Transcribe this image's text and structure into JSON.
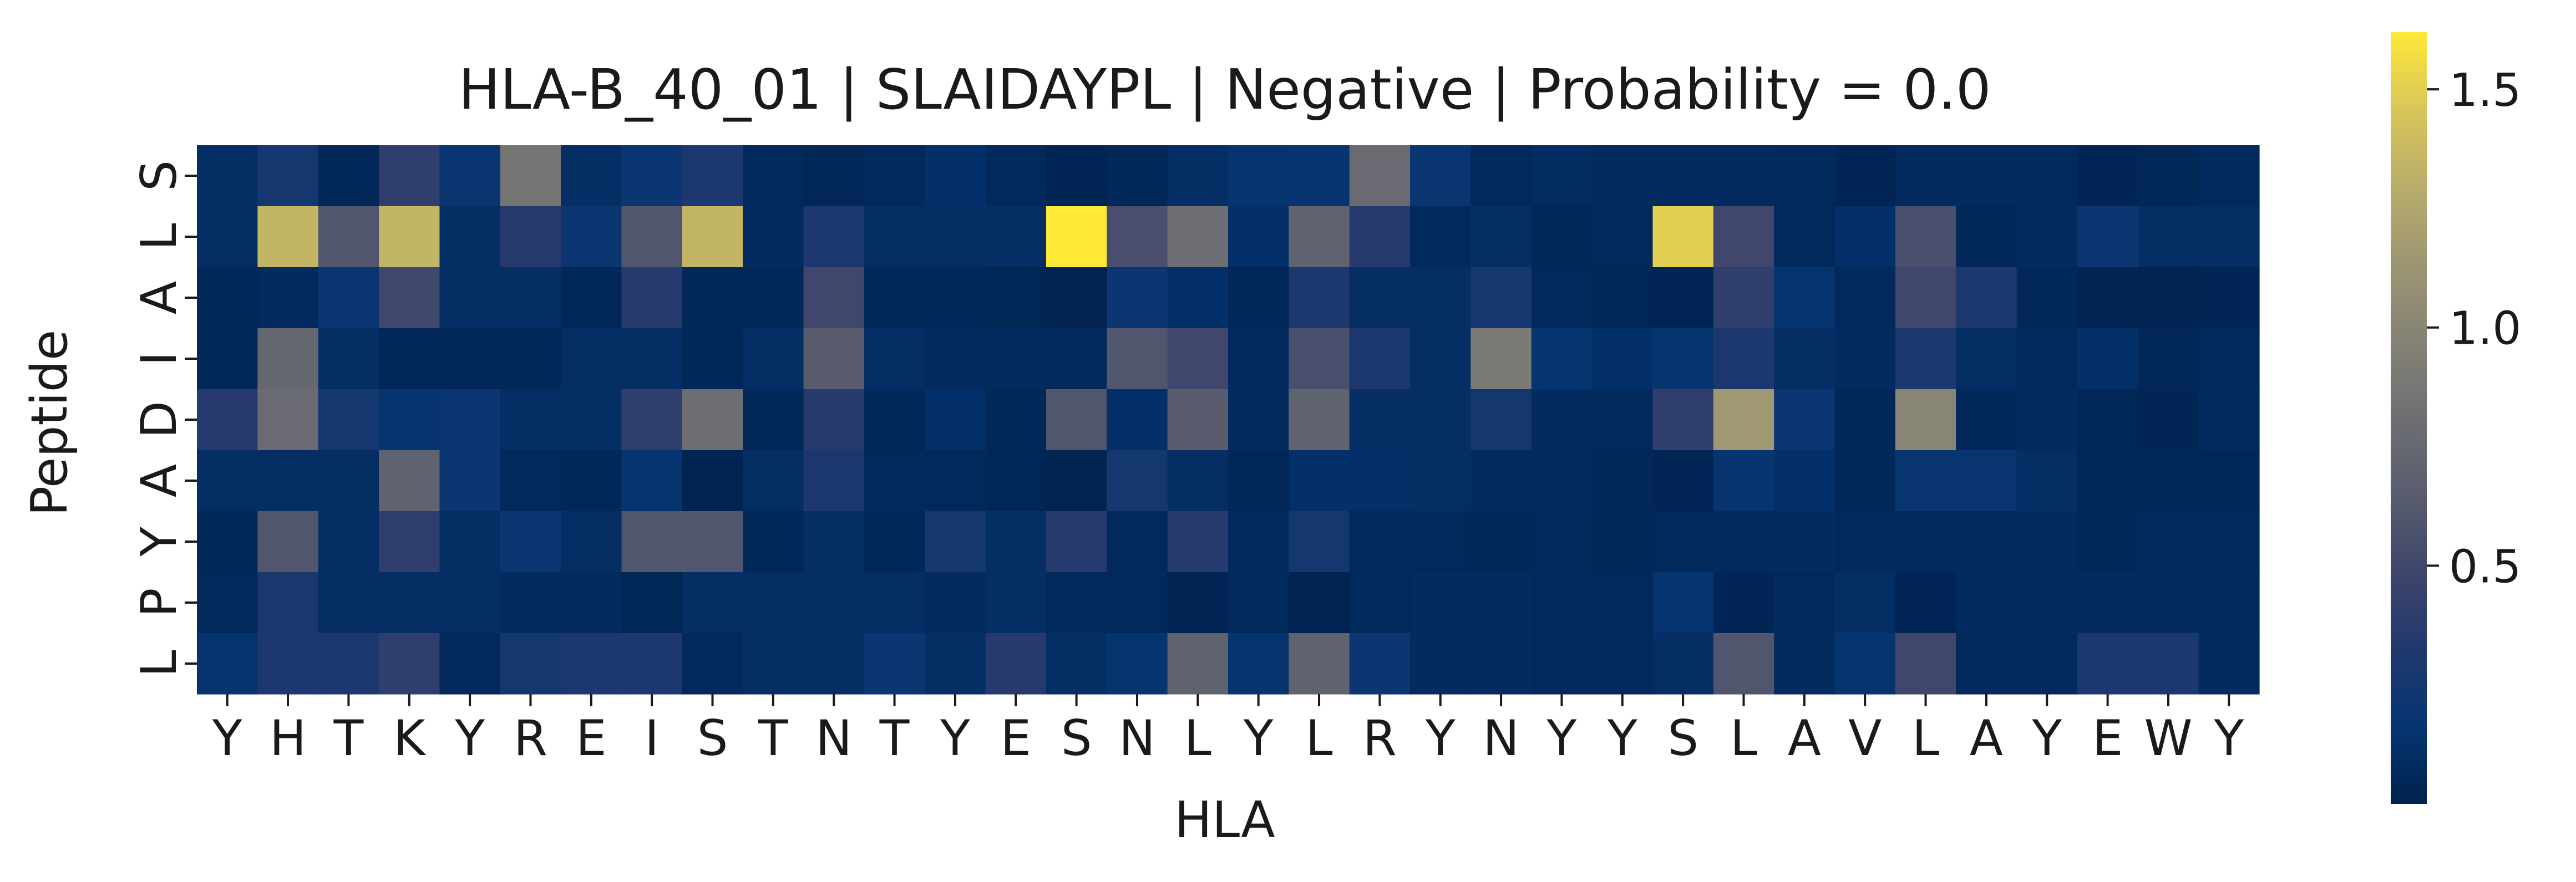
{
  "chart_data": {
    "type": "heatmap",
    "title": "HLA-B_40_01 | SLAIDAYPL | Negative | Probability = 0.0",
    "xlabel": "HLA",
    "ylabel": "Peptide",
    "x_categories": [
      "Y",
      "H",
      "T",
      "K",
      "Y",
      "R",
      "E",
      "I",
      "S",
      "T",
      "N",
      "T",
      "Y",
      "E",
      "S",
      "N",
      "L",
      "Y",
      "L",
      "R",
      "Y",
      "N",
      "Y",
      "Y",
      "S",
      "L",
      "A",
      "V",
      "L",
      "A",
      "Y",
      "E",
      "W",
      "Y"
    ],
    "y_categories": [
      "S",
      "L",
      "A",
      "I",
      "D",
      "A",
      "Y",
      "P",
      "L"
    ],
    "colormap": "cividis",
    "color_range": [
      0.0,
      1.62
    ],
    "colorbar_ticks": [
      0.5,
      1.0,
      1.5
    ],
    "colorbar_tick_labels": [
      "0.5",
      "1.0",
      "1.5"
    ],
    "values": [
      [
        0.1,
        0.25,
        0.05,
        0.4,
        0.18,
        0.85,
        0.1,
        0.2,
        0.3,
        0.06,
        0.04,
        0.06,
        0.12,
        0.06,
        0.03,
        0.05,
        0.1,
        0.15,
        0.16,
        0.78,
        0.18,
        0.06,
        0.09,
        0.08,
        0.07,
        0.08,
        0.06,
        0.03,
        0.08,
        0.08,
        0.07,
        0.03,
        0.04,
        0.07
      ],
      [
        0.1,
        1.35,
        0.6,
        1.35,
        0.1,
        0.35,
        0.2,
        0.6,
        1.35,
        0.08,
        0.3,
        0.1,
        0.1,
        0.1,
        1.62,
        0.55,
        0.8,
        0.12,
        0.7,
        0.35,
        0.06,
        0.1,
        0.05,
        0.06,
        1.5,
        0.5,
        0.06,
        0.12,
        0.55,
        0.05,
        0.08,
        0.2,
        0.1,
        0.1
      ],
      [
        0.05,
        0.08,
        0.18,
        0.5,
        0.1,
        0.1,
        0.05,
        0.35,
        0.05,
        0.05,
        0.5,
        0.05,
        0.05,
        0.04,
        0.02,
        0.2,
        0.12,
        0.05,
        0.3,
        0.1,
        0.1,
        0.25,
        0.06,
        0.04,
        0.03,
        0.4,
        0.15,
        0.06,
        0.5,
        0.3,
        0.05,
        0.02,
        0.02,
        0.03
      ],
      [
        0.05,
        0.75,
        0.1,
        0.05,
        0.05,
        0.05,
        0.1,
        0.1,
        0.05,
        0.1,
        0.65,
        0.1,
        0.08,
        0.08,
        0.06,
        0.6,
        0.5,
        0.08,
        0.55,
        0.3,
        0.1,
        0.9,
        0.15,
        0.12,
        0.15,
        0.3,
        0.1,
        0.08,
        0.3,
        0.1,
        0.06,
        0.12,
        0.05,
        0.06
      ],
      [
        0.35,
        0.78,
        0.25,
        0.15,
        0.2,
        0.1,
        0.1,
        0.4,
        0.8,
        0.05,
        0.35,
        0.05,
        0.12,
        0.05,
        0.6,
        0.12,
        0.65,
        0.08,
        0.7,
        0.1,
        0.1,
        0.25,
        0.08,
        0.06,
        0.4,
        1.15,
        0.2,
        0.05,
        1.0,
        0.05,
        0.08,
        0.04,
        0.03,
        0.08
      ],
      [
        0.1,
        0.1,
        0.1,
        0.7,
        0.2,
        0.06,
        0.05,
        0.15,
        0.02,
        0.1,
        0.3,
        0.06,
        0.06,
        0.04,
        0.02,
        0.25,
        0.1,
        0.05,
        0.12,
        0.12,
        0.1,
        0.08,
        0.07,
        0.05,
        0.03,
        0.15,
        0.12,
        0.05,
        0.18,
        0.18,
        0.1,
        0.04,
        0.05,
        0.05
      ],
      [
        0.05,
        0.6,
        0.1,
        0.4,
        0.1,
        0.2,
        0.1,
        0.6,
        0.6,
        0.05,
        0.1,
        0.05,
        0.25,
        0.1,
        0.35,
        0.06,
        0.35,
        0.07,
        0.25,
        0.06,
        0.06,
        0.05,
        0.06,
        0.05,
        0.06,
        0.08,
        0.08,
        0.06,
        0.08,
        0.08,
        0.08,
        0.05,
        0.07,
        0.07
      ],
      [
        0.06,
        0.28,
        0.1,
        0.1,
        0.1,
        0.08,
        0.08,
        0.04,
        0.1,
        0.1,
        0.1,
        0.1,
        0.08,
        0.1,
        0.06,
        0.06,
        0.02,
        0.06,
        0.02,
        0.06,
        0.08,
        0.08,
        0.06,
        0.06,
        0.15,
        0.03,
        0.06,
        0.1,
        0.03,
        0.08,
        0.08,
        0.08,
        0.08,
        0.08
      ],
      [
        0.15,
        0.3,
        0.3,
        0.4,
        0.06,
        0.25,
        0.3,
        0.3,
        0.06,
        0.1,
        0.1,
        0.2,
        0.1,
        0.35,
        0.1,
        0.15,
        0.7,
        0.15,
        0.7,
        0.2,
        0.08,
        0.08,
        0.06,
        0.06,
        0.1,
        0.6,
        0.08,
        0.15,
        0.5,
        0.06,
        0.06,
        0.3,
        0.3,
        0.08
      ]
    ]
  }
}
